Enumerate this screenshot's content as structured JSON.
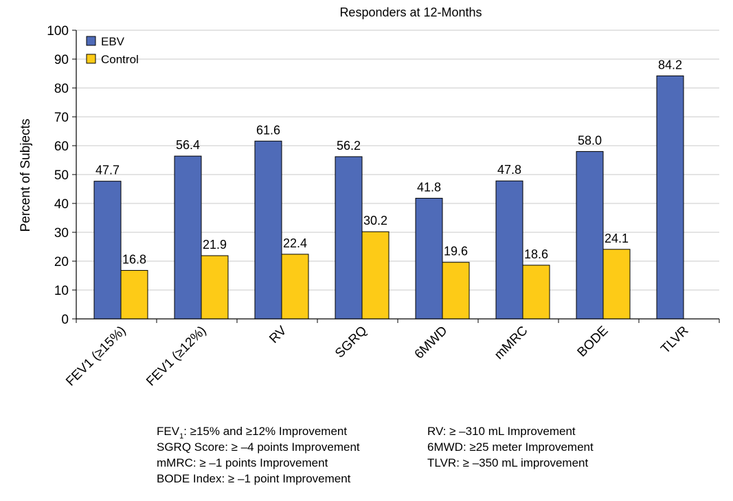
{
  "chart_data": {
    "type": "bar",
    "title": "Responders at 12-Months",
    "xlabel": "",
    "ylabel": "Percent of Subjects",
    "ylim": [
      0,
      100
    ],
    "yticks": [
      0,
      10,
      20,
      30,
      40,
      50,
      60,
      70,
      80,
      90,
      100
    ],
    "yticks_text": [
      "0",
      "10",
      "20",
      "30",
      "40",
      "50",
      "60",
      "70",
      "80",
      "90",
      "100"
    ],
    "grid": true,
    "legend_position": "top-left",
    "categories": [
      "FEV1 (≥15%)",
      "FEV1 (≥12%)",
      "RV",
      "SGRQ",
      "6MWD",
      "mMRC",
      "BODE",
      "TLVR"
    ],
    "series": [
      {
        "name": "EBV",
        "color": "#4F6BB8",
        "values": [
          47.7,
          56.4,
          61.6,
          56.2,
          41.8,
          47.8,
          58.0,
          84.2
        ],
        "labels": [
          "47.7",
          "56.4",
          "61.6",
          "56.2",
          "41.8",
          "47.8",
          "58.0",
          "84.2"
        ]
      },
      {
        "name": "Control",
        "color": "#FDCB17",
        "values": [
          16.8,
          21.9,
          22.4,
          30.2,
          19.6,
          18.6,
          24.1,
          null
        ],
        "labels": [
          "16.8",
          "21.9",
          "22.4",
          "30.2",
          "19.6",
          "18.6",
          "24.1",
          ""
        ]
      }
    ],
    "annotations": [
      {
        "main": "FEV",
        "sub": "1",
        "rest": ": ≥15% and ≥12% Improvement"
      },
      {
        "text": "SGRQ Score: ≥ –4 points Improvement"
      },
      {
        "text": "mMRC: ≥ –1 points Improvement"
      },
      {
        "text": "BODE Index: ≥ –1 point Improvement"
      },
      {
        "text": "RV: ≥ –310 mL Improvement"
      },
      {
        "text": "6MWD: ≥25 meter Improvement"
      },
      {
        "text": "TLVR: ≥ –350 mL improvement"
      }
    ]
  }
}
